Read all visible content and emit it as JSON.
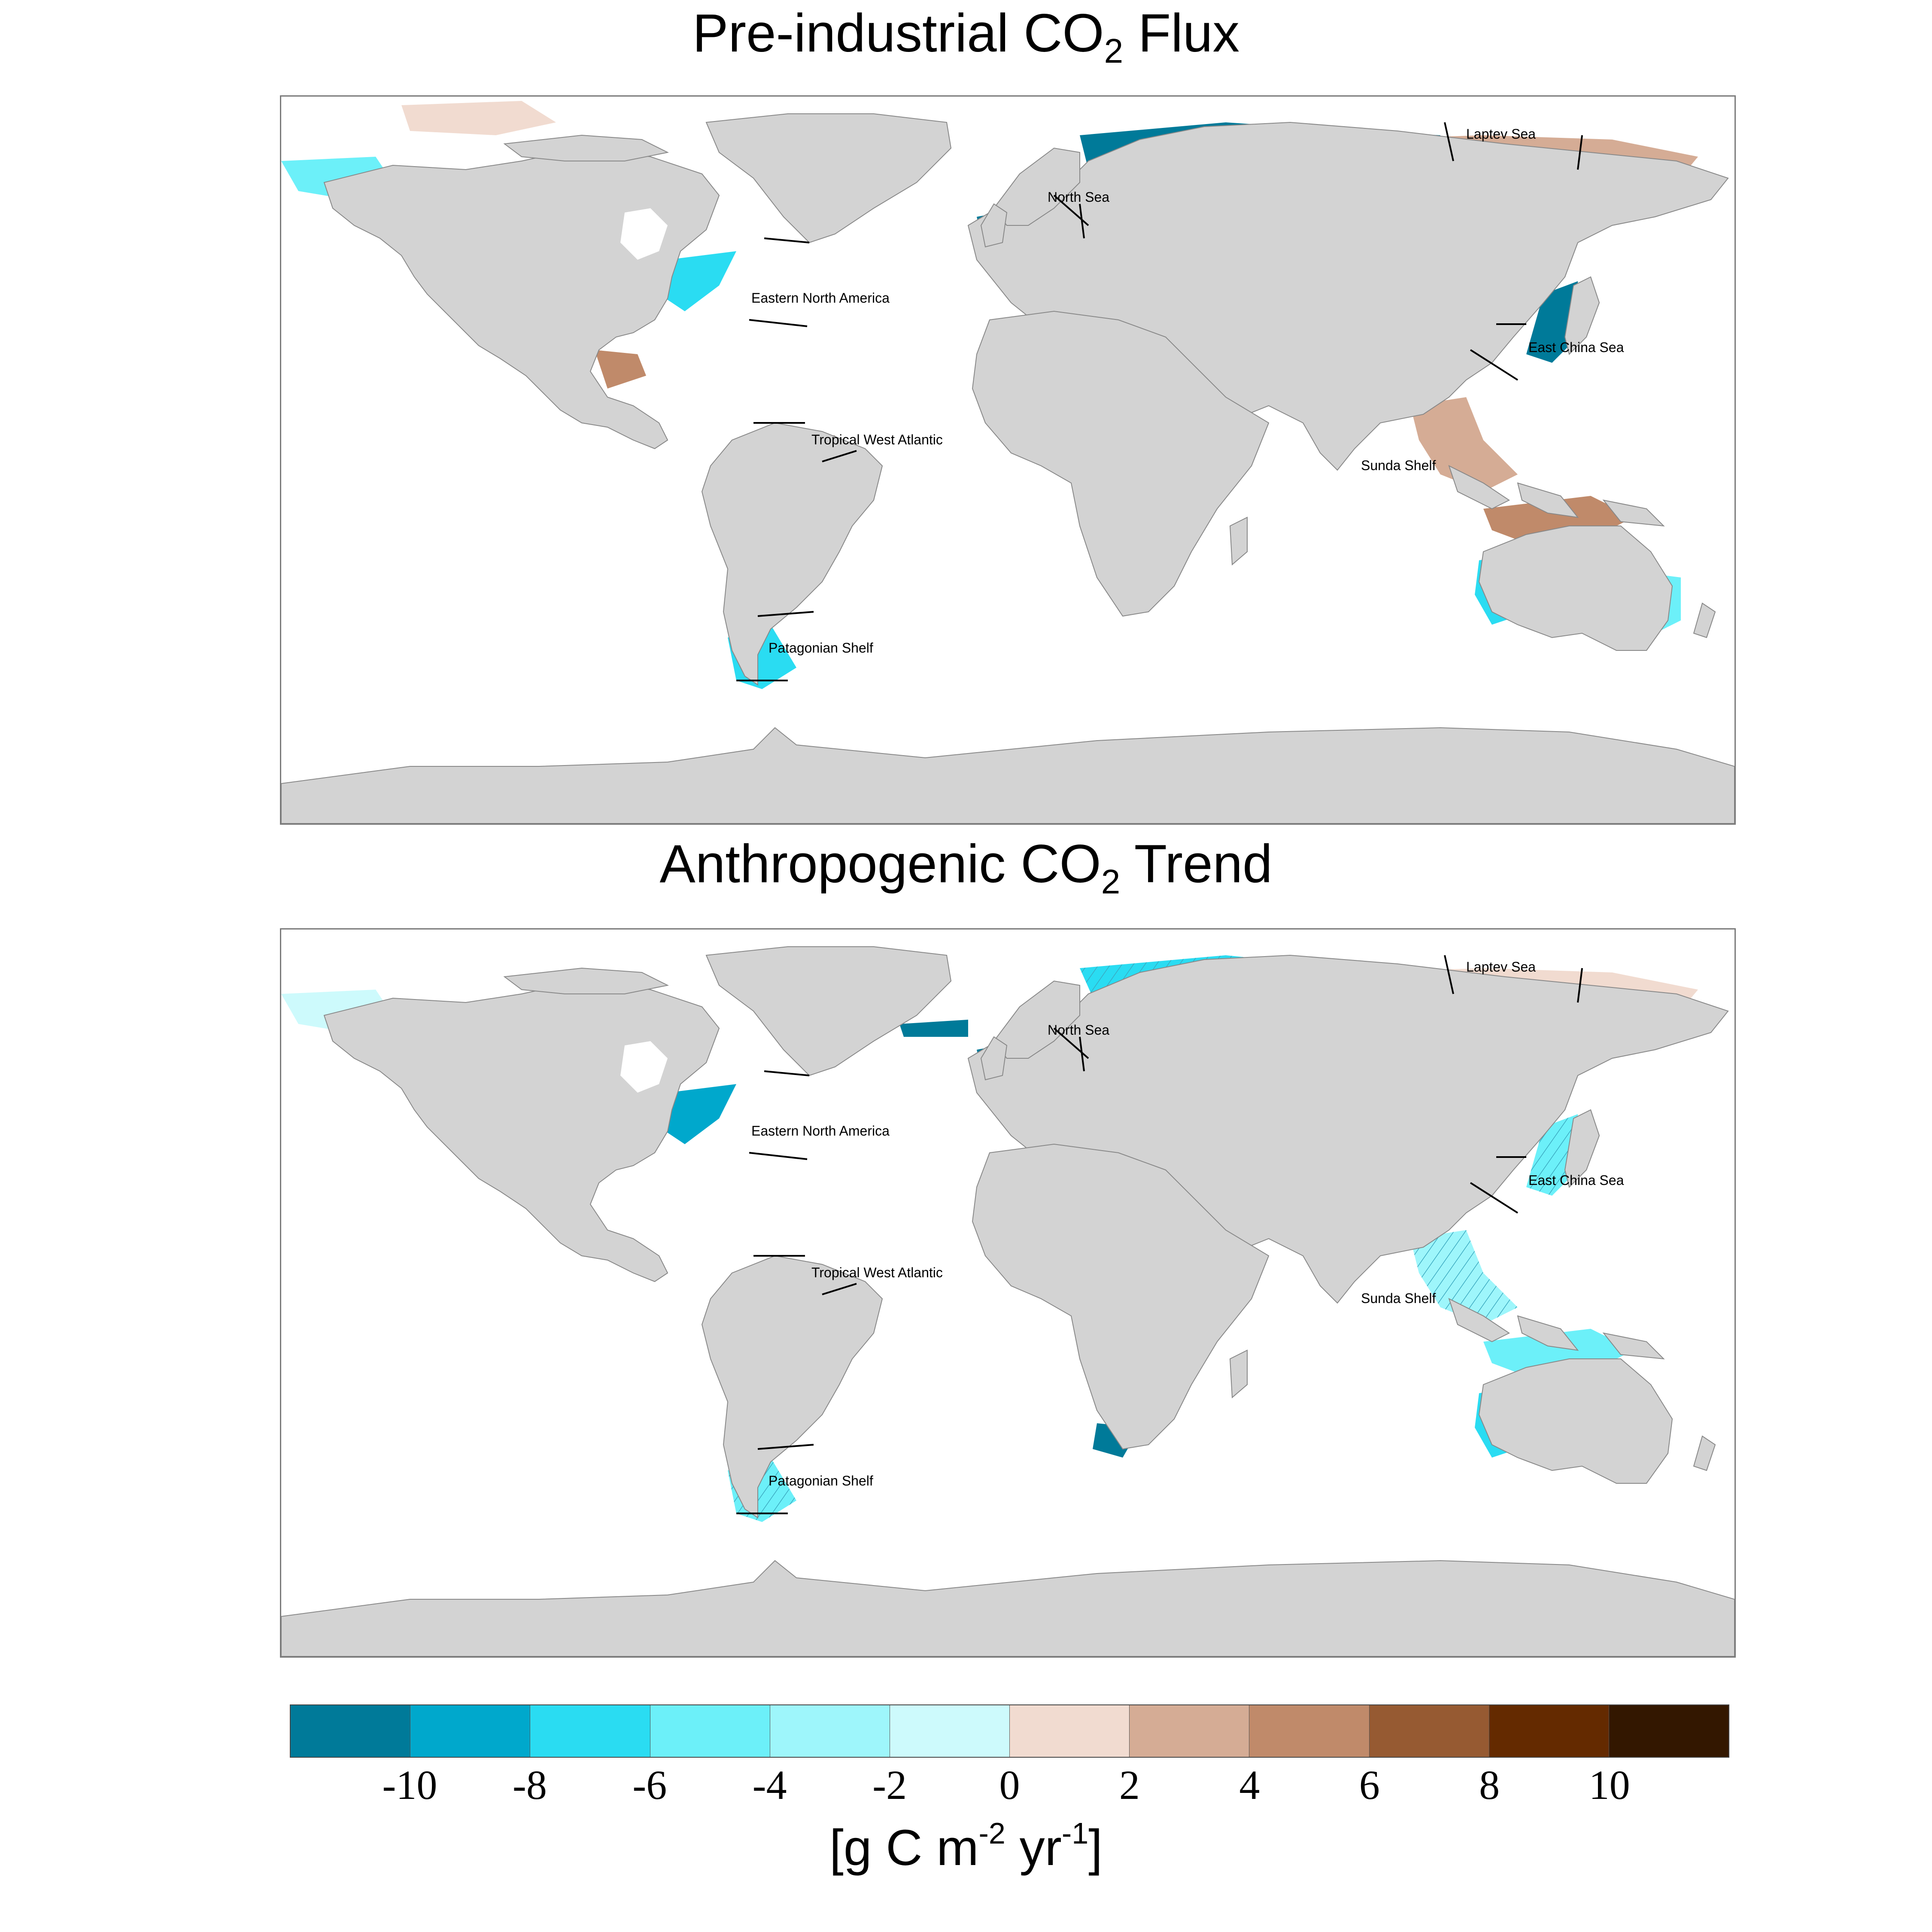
{
  "panel1": {
    "title_main": "Pre-industrial CO",
    "title_sub": "2",
    "title_tail": " Flux"
  },
  "panel2": {
    "title_main": "Anthropogenic CO",
    "title_sub": "2",
    "title_tail": " Trend"
  },
  "regions": {
    "laptev": "Laptev Sea",
    "north_sea": "North Sea",
    "eastern_na": "Eastern North America",
    "east_china": "East China Sea",
    "tropical_wa": "Tropical West Atlantic",
    "sunda": "Sunda Shelf",
    "patagonian": "Patagonian Shelf"
  },
  "colorbar": {
    "colors": [
      "#007a99",
      "#00a8cc",
      "#2adcf2",
      "#6cf0f9",
      "#9ef6fb",
      "#cdfafc",
      "#f1dbd0",
      "#d5ac95",
      "#c08a6a",
      "#965a32",
      "#642a00",
      "#331700"
    ],
    "ticks": [
      "-10",
      "-8",
      "-6",
      "-4",
      "-2",
      "0",
      "2",
      "4",
      "6",
      "8",
      "10"
    ],
    "units_a": "[g C m",
    "units_sup1": "-2",
    "units_b": " yr",
    "units_sup2": "-1",
    "units_c": "]"
  }
}
